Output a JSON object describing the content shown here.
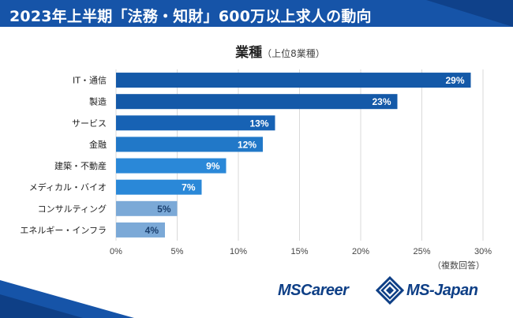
{
  "header": {
    "title": "2023年上半期「法務・知財」600万以上求人の動向"
  },
  "chart_title": {
    "main": "業種",
    "sub": "（上位8業種）"
  },
  "note": "（複数回答）",
  "logos": {
    "left": "MSCareer",
    "right": "MS-Japan"
  },
  "colors": {
    "header": "#1654a8",
    "bar_dark": "#1459a8",
    "bar_mid": "#2178c8",
    "bar_light": "#2a8cdc",
    "bar_pale": "#7ba9d7"
  },
  "chart_data": {
    "type": "bar",
    "orientation": "horizontal",
    "title": "業種（上位8業種）",
    "categories": [
      "IT・通信",
      "製造",
      "サービス",
      "金融",
      "建築・不動産",
      "メディカル・バイオ",
      "コンサルティング",
      "エネルギー・インフラ"
    ],
    "values": [
      29,
      23,
      13,
      12,
      9,
      7,
      5,
      4
    ],
    "data_labels": [
      "29%",
      "23%",
      "13%",
      "12%",
      "9%",
      "7%",
      "5%",
      "4%"
    ],
    "bar_colors": [
      "#1459a8",
      "#1459a8",
      "#1762b4",
      "#2178c8",
      "#2a88d8",
      "#2a88d8",
      "#7ba9d7",
      "#7ba9d7"
    ],
    "xlim": [
      0,
      30
    ],
    "xticks": [
      "0%",
      "5%",
      "10%",
      "15%",
      "20%",
      "25%",
      "30%"
    ],
    "grid": true,
    "legend": "none"
  }
}
